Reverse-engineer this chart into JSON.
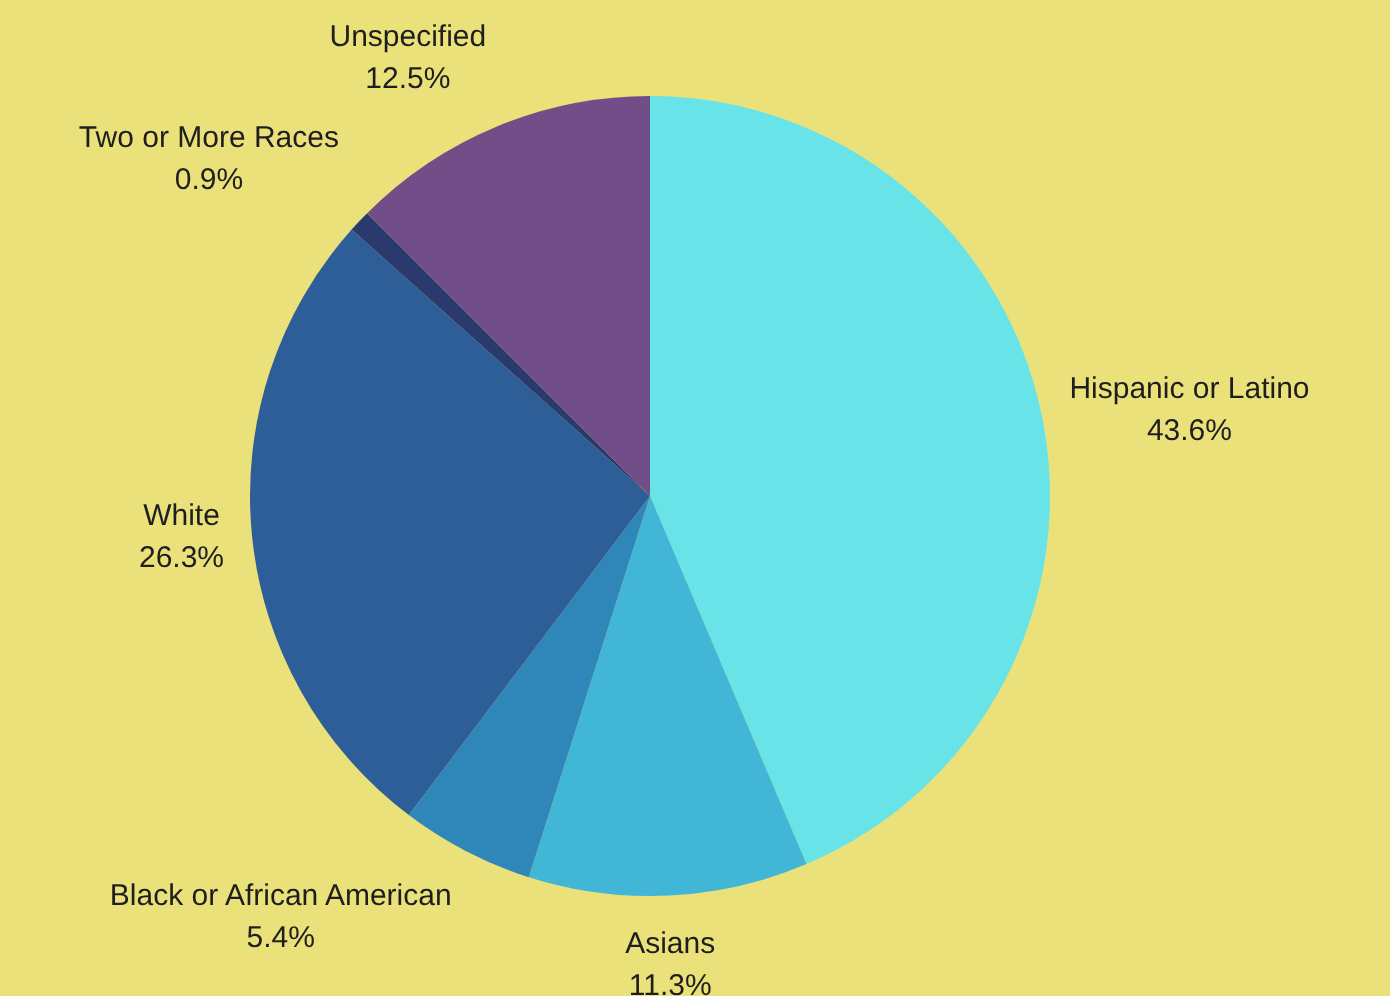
{
  "chart_data": {
    "type": "pie",
    "categories": [
      "Hispanic or Latino",
      "Asians",
      "Black or African American",
      "White",
      "Two or More Races",
      "Unspecified"
    ],
    "values": [
      43.6,
      11.3,
      5.4,
      26.3,
      0.9,
      12.5
    ],
    "value_labels": [
      "43.6%",
      "11.3%",
      "5.4%",
      "26.3%",
      "0.9%",
      "12.5%"
    ],
    "colors": [
      "#68e4e8",
      "#42b6d6",
      "#2e87b8",
      "#2e5e98",
      "#2a3a6e",
      "#724e88"
    ],
    "legend": false
  }
}
